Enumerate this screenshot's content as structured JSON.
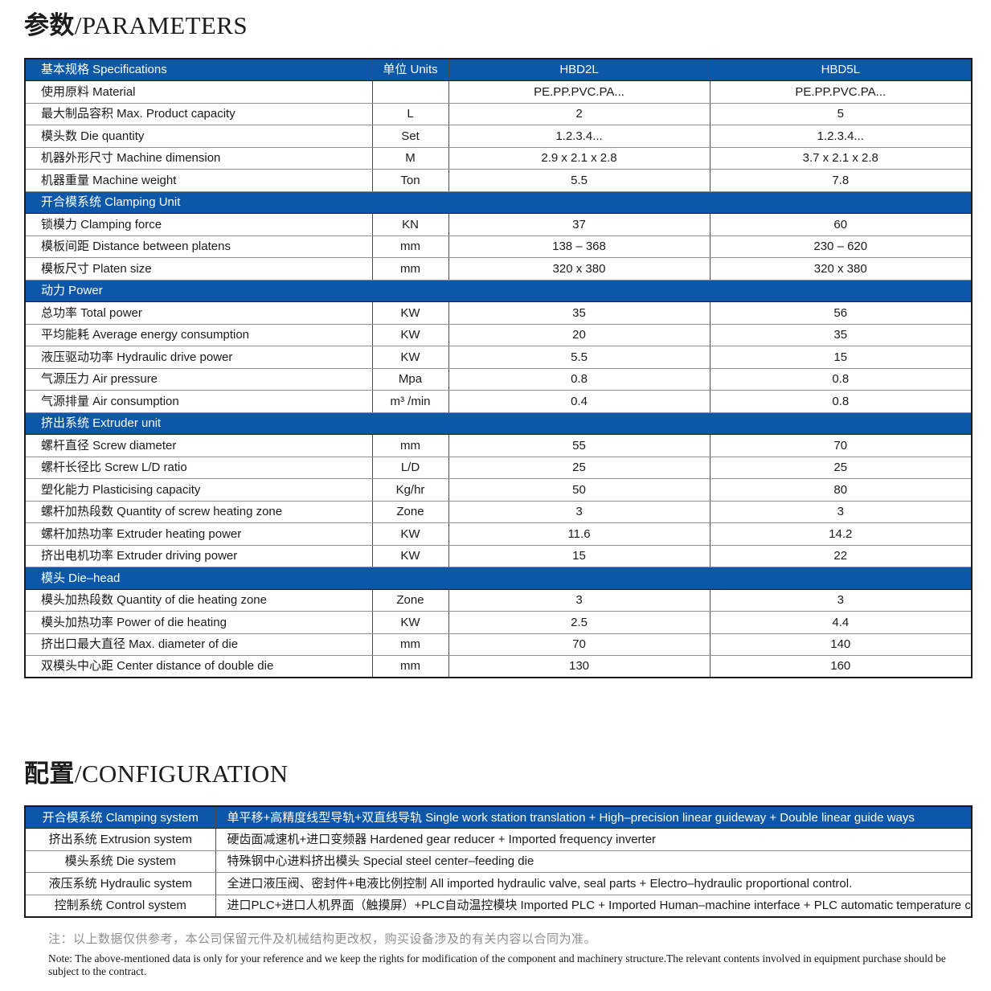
{
  "titles": {
    "parameters_zh": "参数",
    "parameters_en": "/PARAMETERS",
    "configuration_zh": "配置",
    "configuration_en": "/CONFIGURATION"
  },
  "parameters_table": {
    "header": {
      "spec": "基本规格 Specifications",
      "units": "单位 Units",
      "model1": "HBD2L",
      "model2": "HBD5L"
    },
    "sections": [
      {
        "title": null,
        "rows": [
          {
            "label": "使用原料 Material",
            "unit": "",
            "hbd2l": "PE.PP.PVC.PA...",
            "hbd5l": "PE.PP.PVC.PA..."
          },
          {
            "label": "最大制品容积 Max. Product capacity",
            "unit": "L",
            "hbd2l": "2",
            "hbd5l": "5"
          },
          {
            "label": "模头数 Die quantity",
            "unit": "Set",
            "hbd2l": "1.2.3.4...",
            "hbd5l": "1.2.3.4..."
          },
          {
            "label": "机器外形尺寸 Machine dimension",
            "unit": "M",
            "hbd2l": "2.9 x 2.1 x 2.8",
            "hbd5l": "3.7 x 2.1 x 2.8"
          },
          {
            "label": "机器重量 Machine weight",
            "unit": "Ton",
            "hbd2l": "5.5",
            "hbd5l": "7.8"
          }
        ]
      },
      {
        "title": "开合模系统 Clamping Unit",
        "rows": [
          {
            "label": "锁模力 Clamping force",
            "unit": "KN",
            "hbd2l": "37",
            "hbd5l": "60"
          },
          {
            "label": "模板间距 Distance between platens",
            "unit": "mm",
            "hbd2l": "138 – 368",
            "hbd5l": "230 – 620"
          },
          {
            "label": "模板尺寸 Platen size",
            "unit": "mm",
            "hbd2l": "320 x 380",
            "hbd5l": "320 x 380"
          }
        ]
      },
      {
        "title": "动力 Power",
        "rows": [
          {
            "label": "总功率 Total power",
            "unit": "KW",
            "hbd2l": "35",
            "hbd5l": "56"
          },
          {
            "label": "平均能耗 Average energy consumption",
            "unit": "KW",
            "hbd2l": "20",
            "hbd5l": "35"
          },
          {
            "label": "液压驱动功率 Hydraulic drive power",
            "unit": "KW",
            "hbd2l": "5.5",
            "hbd5l": "15"
          },
          {
            "label": "气源压力 Air pressure",
            "unit": "Mpa",
            "hbd2l": "0.8",
            "hbd5l": "0.8"
          },
          {
            "label": "气源排量 Air consumption",
            "unit": "m³ /min",
            "hbd2l": "0.4",
            "hbd5l": "0.8"
          }
        ]
      },
      {
        "title": "挤出系统 Extruder unit",
        "rows": [
          {
            "label": "螺杆直径 Screw diameter",
            "unit": "mm",
            "hbd2l": "55",
            "hbd5l": "70"
          },
          {
            "label": "螺杆长径比 Screw L/D ratio",
            "unit": "L/D",
            "hbd2l": "25",
            "hbd5l": "25"
          },
          {
            "label": "塑化能力 Plasticising capacity",
            "unit": "Kg/hr",
            "hbd2l": "50",
            "hbd5l": "80"
          },
          {
            "label": "螺杆加热段数 Quantity of screw heating zone",
            "unit": "Zone",
            "hbd2l": "3",
            "hbd5l": "3"
          },
          {
            "label": "螺杆加热功率 Extruder heating power",
            "unit": "KW",
            "hbd2l": "11.6",
            "hbd5l": "14.2"
          },
          {
            "label": "挤出电机功率 Extruder driving power",
            "unit": "KW",
            "hbd2l": "15",
            "hbd5l": "22"
          }
        ]
      },
      {
        "title": "模头 Die–head",
        "rows": [
          {
            "label": "模头加热段数 Quantity of die heating zone",
            "unit": "Zone",
            "hbd2l": "3",
            "hbd5l": "3"
          },
          {
            "label": "模头加热功率 Power of die heating",
            "unit": "KW",
            "hbd2l": "2.5",
            "hbd5l": "4.4"
          },
          {
            "label": "挤出口最大直径 Max. diameter of die",
            "unit": "mm",
            "hbd2l": "70",
            "hbd5l": "140"
          },
          {
            "label": "双模头中心距 Center distance of double die",
            "unit": "mm",
            "hbd2l": "130",
            "hbd5l": "160"
          }
        ]
      }
    ]
  },
  "configuration_table": {
    "rows": [
      {
        "label": "开合模系统 Clamping system",
        "value": "单平移+高精度线型导轨+双直线导轨 Single work station translation + High–precision linear guideway + Double linear guide ways",
        "highlight": true
      },
      {
        "label": "挤出系统 Extrusion system",
        "value": "硬齿面减速机+进口变频器 Hardened gear reducer + Imported frequency inverter",
        "highlight": false
      },
      {
        "label": "模头系统 Die system",
        "value": "特殊钢中心进料挤出模头 Special steel center–feeding die",
        "highlight": false
      },
      {
        "label": "液压系统 Hydraulic system",
        "value": "全进口液压阀、密封件+电液比例控制 All imported hydraulic valve, seal parts + Electro–hydraulic proportional control.",
        "highlight": false
      },
      {
        "label": "控制系统 Control system",
        "value": "进口PLC+进口人机界面（触摸屏）+PLC自动温控模块 Imported PLC + Imported Human–machine interface + PLC automatic temperature control module",
        "highlight": false
      }
    ]
  },
  "notes": {
    "zh": "注：以上数据仅供参考，本公司保留元件及机械结构更改权，购买设备涉及的有关内容以合同为准。",
    "en": "Note: The above-mentioned data is only for your reference and we keep the rights for modification of the component and machinery structure.The relevant contents involved in equipment purchase should be subject to the contract."
  },
  "colors": {
    "header_blue": "#0d57a8"
  }
}
